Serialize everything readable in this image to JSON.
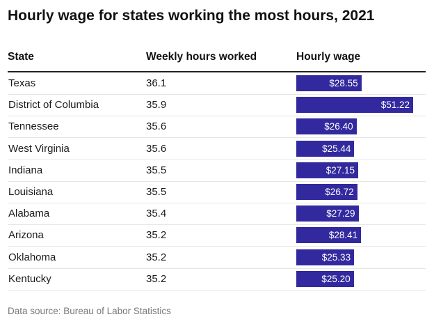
{
  "chart_data": {
    "type": "table",
    "title": "Hourly wage for states working the most hours, 2021",
    "columns": [
      "State",
      "Weekly hours worked",
      "Hourly wage"
    ],
    "rows": [
      {
        "state": "Texas",
        "hours": "36.1",
        "wage": 28.55,
        "wage_label": "$28.55"
      },
      {
        "state": "District of Columbia",
        "hours": "35.9",
        "wage": 51.22,
        "wage_label": "$51.22"
      },
      {
        "state": "Tennessee",
        "hours": "35.6",
        "wage": 26.4,
        "wage_label": "$26.40"
      },
      {
        "state": "West Virginia",
        "hours": "35.6",
        "wage": 25.44,
        "wage_label": "$25.44"
      },
      {
        "state": "Indiana",
        "hours": "35.5",
        "wage": 27.15,
        "wage_label": "$27.15"
      },
      {
        "state": "Louisiana",
        "hours": "35.5",
        "wage": 26.72,
        "wage_label": "$26.72"
      },
      {
        "state": "Alabama",
        "hours": "35.4",
        "wage": 27.29,
        "wage_label": "$27.29"
      },
      {
        "state": "Arizona",
        "hours": "35.2",
        "wage": 28.41,
        "wage_label": "$28.41"
      },
      {
        "state": "Oklahoma",
        "hours": "35.2",
        "wage": 25.33,
        "wage_label": "$25.33"
      },
      {
        "state": "Kentucky",
        "hours": "35.2",
        "wage": 25.2,
        "wage_label": "$25.20"
      }
    ],
    "bar_color": "#33299e",
    "source": "Data source: Bureau of Labor Statistics"
  }
}
